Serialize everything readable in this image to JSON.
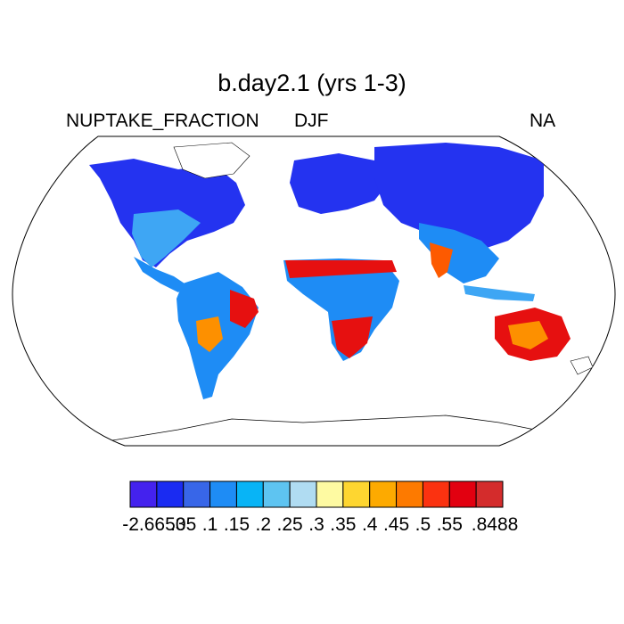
{
  "title": "b.day2.1 (yrs 1-3)",
  "variable": "NUPTAKE_FRACTION",
  "season": "DJF",
  "right_label": "NA",
  "colorbar": {
    "colors": [
      "#4422ee",
      "#1a2bf2",
      "#3866e8",
      "#1e8cf5",
      "#08b4f6",
      "#5ec4f1",
      "#b0dcf2",
      "#fefaa2",
      "#fed630",
      "#fdaa00",
      "#fd7a00",
      "#fb3210",
      "#e20010",
      "#d42c2c"
    ],
    "labels": [
      "-2.6653",
      ".05",
      ".1",
      ".15",
      ".2",
      ".25",
      ".3",
      ".35",
      ".4",
      ".45",
      ".5",
      ".55",
      ".8488"
    ]
  }
}
